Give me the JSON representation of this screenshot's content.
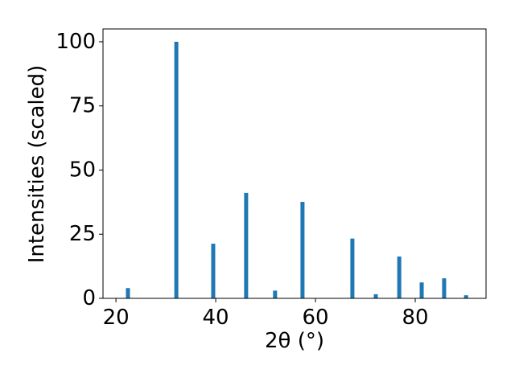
{
  "chart_data": {
    "type": "bar",
    "x": [
      22.4,
      32.1,
      39.5,
      46.1,
      51.9,
      57.4,
      67.4,
      72.1,
      76.8,
      81.3,
      85.8,
      90.2
    ],
    "values": [
      4,
      100,
      21.3,
      41.1,
      3,
      37.6,
      23.3,
      1.6,
      16.3,
      6.2,
      7.8,
      1.2
    ],
    "color": "#1f77b4",
    "xlabel": "2θ (°)",
    "ylabel": "Intensities (scaled)",
    "xlim": [
      17.4,
      94.2
    ],
    "ylim": [
      0,
      105
    ],
    "xticks": [
      20,
      40,
      60,
      80
    ],
    "yticks": [
      0,
      25,
      50,
      75,
      100
    ]
  }
}
